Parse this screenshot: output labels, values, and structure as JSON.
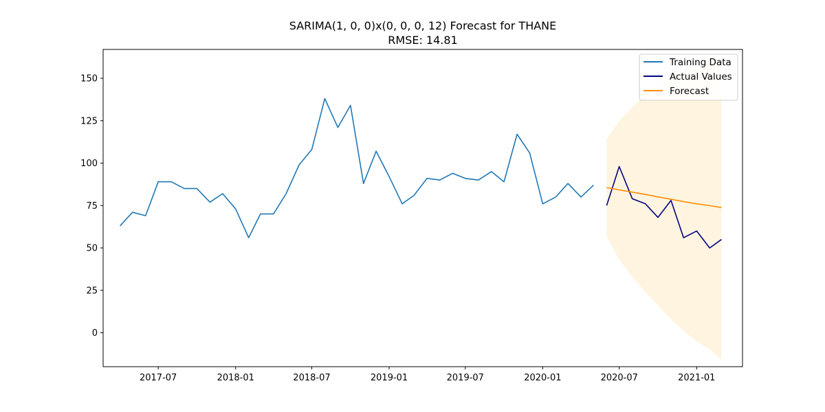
{
  "chart_data": {
    "type": "line",
    "title": "SARIMA(1, 0, 0)x(0, 0, 0, 12) Forecast for THANE",
    "subtitle": "RMSE: 14.81",
    "xlabel": "",
    "ylabel": "",
    "x_range": [
      "2017-02-20",
      "2021-04-20"
    ],
    "ylim": [
      -20,
      167
    ],
    "y_ticks": [
      0,
      25,
      50,
      75,
      100,
      125,
      150
    ],
    "x_ticks": [
      "2017-07-01",
      "2018-01-01",
      "2018-07-01",
      "2019-01-01",
      "2019-07-01",
      "2020-01-01",
      "2020-07-01",
      "2021-01-01"
    ],
    "x_tick_labels": [
      "2017-07",
      "2018-01",
      "2018-07",
      "2019-01",
      "2019-07",
      "2020-01",
      "2020-07",
      "2021-01"
    ],
    "grid": false,
    "legend_position": "top-right",
    "series": [
      {
        "name": "Training Data",
        "color": "#1f77b4",
        "x": [
          "2017-04-01",
          "2017-05-01",
          "2017-06-01",
          "2017-07-01",
          "2017-08-01",
          "2017-09-01",
          "2017-10-01",
          "2017-11-01",
          "2017-12-01",
          "2018-01-01",
          "2018-02-01",
          "2018-03-01",
          "2018-04-01",
          "2018-05-01",
          "2018-06-01",
          "2018-07-01",
          "2018-08-01",
          "2018-09-01",
          "2018-10-01",
          "2018-11-01",
          "2018-12-01",
          "2019-01-01",
          "2019-02-01",
          "2019-03-01",
          "2019-04-01",
          "2019-05-01",
          "2019-06-01",
          "2019-07-01",
          "2019-08-01",
          "2019-09-01",
          "2019-10-01",
          "2019-11-01",
          "2019-12-01",
          "2020-01-01",
          "2020-02-01",
          "2020-03-01",
          "2020-04-01",
          "2020-05-01"
        ],
        "values": [
          63,
          71,
          69,
          89,
          89,
          85,
          85,
          77,
          82,
          73,
          56,
          70,
          70,
          82,
          99,
          108,
          138,
          121,
          134,
          88,
          107,
          92,
          76,
          81,
          91,
          90,
          94,
          91,
          90,
          95,
          89,
          117,
          106,
          76,
          80,
          88,
          80,
          87
        ]
      },
      {
        "name": "Actual Values",
        "color": "#000080",
        "x": [
          "2020-06-01",
          "2020-07-01",
          "2020-08-01",
          "2020-09-01",
          "2020-10-01",
          "2020-11-01",
          "2020-12-01",
          "2021-01-01",
          "2021-02-01",
          "2021-03-01"
        ],
        "values": [
          75,
          98,
          79,
          76,
          68,
          78,
          56,
          60,
          50,
          55
        ]
      },
      {
        "name": "Forecast",
        "color": "#ff8c00",
        "x": [
          "2020-06-01",
          "2020-07-01",
          "2020-08-01",
          "2020-09-01",
          "2020-10-01",
          "2020-11-01",
          "2020-12-01",
          "2021-01-01",
          "2021-02-01",
          "2021-03-01"
        ],
        "values": [
          85.6,
          84.2,
          82.9,
          81.5,
          80.1,
          78.7,
          77.3,
          76.0,
          74.9,
          73.8
        ]
      }
    ],
    "confidence_interval": {
      "color": "#ffa500",
      "opacity": 0.12,
      "x": [
        "2020-06-01",
        "2020-07-01",
        "2020-08-01",
        "2020-09-01",
        "2020-10-01",
        "2020-11-01",
        "2020-12-01",
        "2021-01-01",
        "2021-02-01",
        "2021-03-01"
      ],
      "lower": [
        57,
        43,
        33,
        24,
        16,
        8,
        1,
        -5,
        -10,
        -16
      ],
      "upper": [
        114,
        125,
        133,
        140,
        145,
        150,
        154,
        157,
        160,
        163
      ]
    }
  }
}
